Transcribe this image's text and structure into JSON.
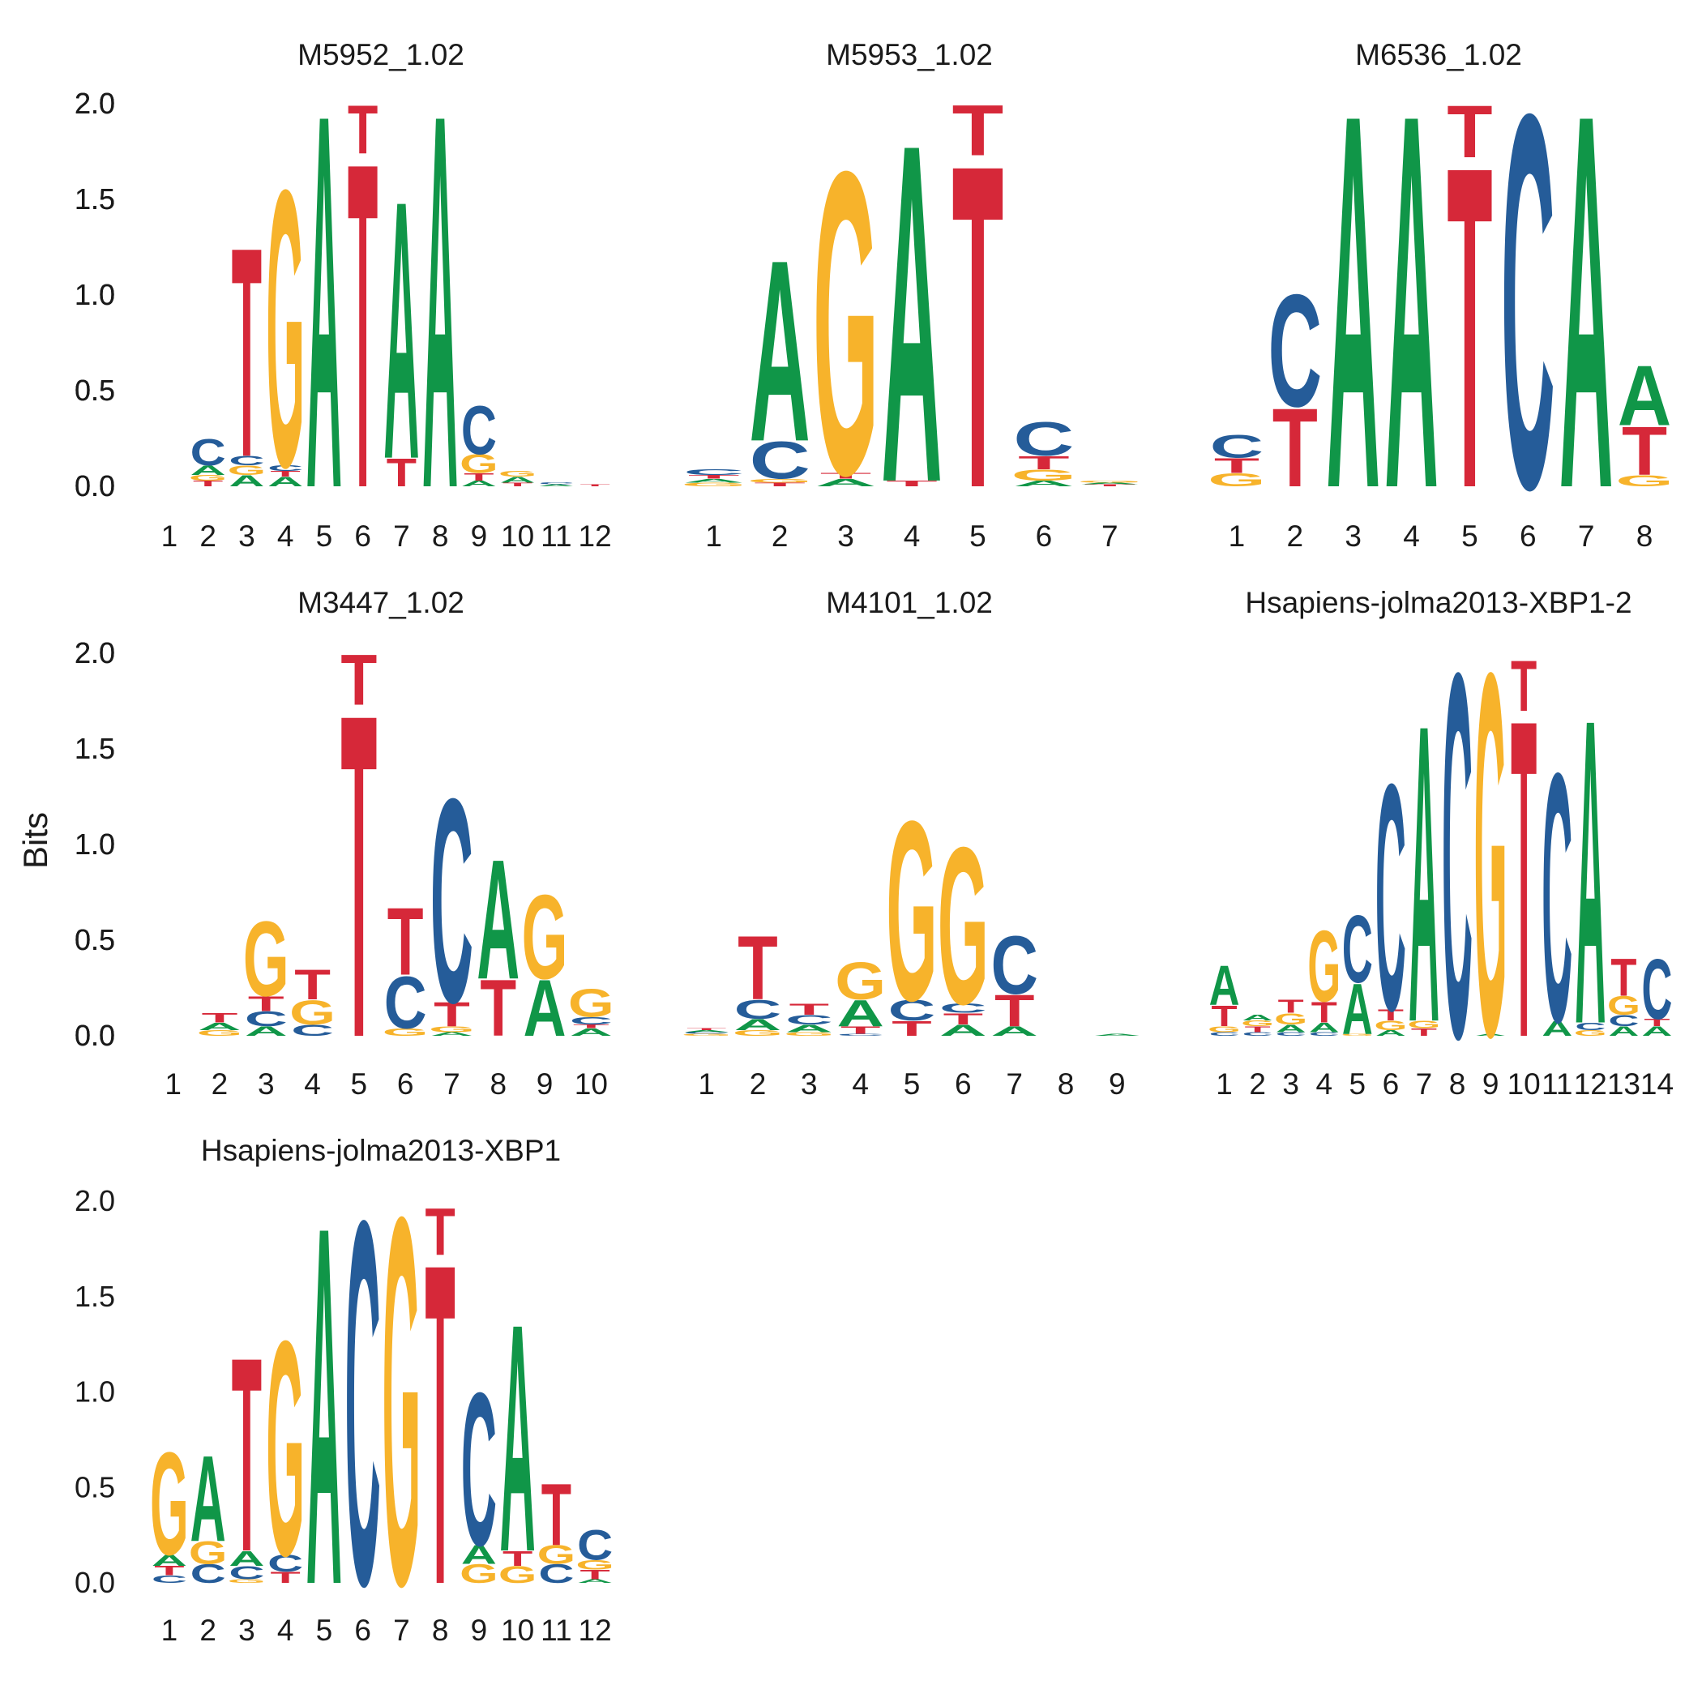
{
  "chart_data": {
    "type": "sequence-logo",
    "ylabel": "Bits",
    "ylim": [
      0,
      2
    ],
    "yticks": [
      "0.0",
      "0.5",
      "1.0",
      "1.5",
      "2.0"
    ],
    "colors": {
      "A": "#109648",
      "C": "#255C99",
      "G": "#F7B32B",
      "T": "#D62839"
    },
    "panels": [
      {
        "title": "M5952_1.02",
        "positions": [
          "1",
          "2",
          "3",
          "4",
          "5",
          "6",
          "7",
          "8",
          "9",
          "10",
          "11",
          "12"
        ],
        "stacks": [
          [],
          [
            [
              "T",
              0.03
            ],
            [
              "G",
              0.03
            ],
            [
              "A",
              0.05
            ],
            [
              "C",
              0.14
            ]
          ],
          [
            [
              "A",
              0.06
            ],
            [
              "G",
              0.05
            ],
            [
              "C",
              0.05
            ],
            [
              "T",
              1.12
            ]
          ],
          [
            [
              "A",
              0.05
            ],
            [
              "T",
              0.03
            ],
            [
              "C",
              0.03
            ],
            [
              "G",
              1.48
            ]
          ],
          [
            [
              "A",
              2.0
            ]
          ],
          [
            [
              "T",
              1.74
            ],
            [
              "T",
              0.26
            ]
          ],
          [
            [
              "T",
              0.15
            ],
            [
              "A",
              1.38
            ]
          ],
          [
            [
              "A",
              2.0
            ]
          ],
          [
            [
              "A",
              0.03
            ],
            [
              "T",
              0.04
            ],
            [
              "G",
              0.1
            ],
            [
              "C",
              0.26
            ]
          ],
          [
            [
              "T",
              0.02
            ],
            [
              "A",
              0.03
            ],
            [
              "G",
              0.03
            ]
          ],
          [
            [
              "A",
              0.01
            ],
            [
              "C",
              0.01
            ]
          ],
          [
            [
              "T",
              0.01
            ]
          ]
        ]
      },
      {
        "title": "M5953_1.02",
        "positions": [
          "1",
          "2",
          "3",
          "4",
          "5",
          "6",
          "7"
        ],
        "stacks": [
          [
            [
              "G",
              0.02
            ],
            [
              "A",
              0.02
            ],
            [
              "T",
              0.02
            ],
            [
              "C",
              0.03
            ]
          ],
          [
            [
              "T",
              0.02
            ],
            [
              "G",
              0.02
            ],
            [
              "C",
              0.2
            ],
            [
              "A",
              0.97
            ]
          ],
          [
            [
              "A",
              0.04
            ],
            [
              "T",
              0.03
            ],
            [
              "G",
              1.62
            ]
          ],
          [
            [
              "T",
              0.03
            ],
            [
              "A",
              1.81
            ]
          ],
          [
            [
              "T",
              1.73
            ],
            [
              "T",
              0.27
            ]
          ],
          [
            [
              "A",
              0.03
            ],
            [
              "G",
              0.06
            ],
            [
              "T",
              0.07
            ],
            [
              "C",
              0.18
            ]
          ],
          [
            [
              "T",
              0.01
            ],
            [
              "A",
              0.01
            ],
            [
              "G",
              0.01
            ]
          ]
        ]
      },
      {
        "title": "M6536_1.02",
        "positions": [
          "1",
          "2",
          "3",
          "4",
          "5",
          "6",
          "7",
          "8"
        ],
        "stacks": [
          [
            [
              "G",
              0.07
            ],
            [
              "T",
              0.08
            ],
            [
              "C",
              0.12
            ]
          ],
          [
            [
              "T",
              0.42
            ],
            [
              "C",
              0.6
            ]
          ],
          [
            [
              "A",
              2.0
            ]
          ],
          [
            [
              "A",
              2.0
            ]
          ],
          [
            [
              "T",
              1.72
            ],
            [
              "T",
              0.28
            ]
          ],
          [
            [
              "C",
              2.0
            ]
          ],
          [
            [
              "A",
              2.0
            ]
          ],
          [
            [
              "G",
              0.06
            ],
            [
              "T",
              0.26
            ],
            [
              "A",
              0.32
            ]
          ]
        ]
      },
      {
        "title": "M3447_1.02",
        "positions": [
          "1",
          "2",
          "3",
          "4",
          "5",
          "6",
          "7",
          "8",
          "9",
          "10"
        ],
        "stacks": [
          [],
          [
            [
              "G",
              0.03
            ],
            [
              "A",
              0.04
            ],
            [
              "T",
              0.05
            ]
          ],
          [
            [
              "A",
              0.05
            ],
            [
              "C",
              0.08
            ],
            [
              "T",
              0.08
            ],
            [
              "G",
              0.4
            ]
          ],
          [
            [
              "C",
              0.06
            ],
            [
              "G",
              0.13
            ],
            [
              "T",
              0.16
            ]
          ],
          [
            [
              "T",
              1.73
            ],
            [
              "T",
              0.27
            ]
          ],
          [
            [
              "G",
              0.04
            ],
            [
              "C",
              0.28
            ],
            [
              "T",
              0.36
            ]
          ],
          [
            [
              "A",
              0.02
            ],
            [
              "G",
              0.03
            ],
            [
              "T",
              0.13
            ],
            [
              "C",
              1.09
            ]
          ],
          [
            [
              "T",
              0.3
            ],
            [
              "A",
              0.64
            ]
          ],
          [
            [
              "A",
              0.3
            ],
            [
              "G",
              0.45
            ]
          ],
          [
            [
              "A",
              0.04
            ],
            [
              "T",
              0.02
            ],
            [
              "C",
              0.04
            ],
            [
              "G",
              0.15
            ]
          ]
        ]
      },
      {
        "title": "M4101_1.02",
        "positions": [
          "1",
          "2",
          "3",
          "4",
          "5",
          "6",
          "7",
          "8",
          "9"
        ],
        "stacks": [
          [
            [
              "G",
              0.01
            ],
            [
              "C",
              0.01
            ],
            [
              "A",
              0.01
            ],
            [
              "T",
              0.01
            ]
          ],
          [
            [
              "G",
              0.03
            ],
            [
              "A",
              0.06
            ],
            [
              "C",
              0.1
            ],
            [
              "T",
              0.34
            ]
          ],
          [
            [
              "G",
              0.02
            ],
            [
              "A",
              0.04
            ],
            [
              "C",
              0.05
            ],
            [
              "T",
              0.06
            ]
          ],
          [
            [
              "C",
              0.01
            ],
            [
              "T",
              0.04
            ],
            [
              "A",
              0.14
            ],
            [
              "G",
              0.2
            ]
          ],
          [
            [
              "T",
              0.08
            ],
            [
              "C",
              0.11
            ],
            [
              "G",
              0.96
            ]
          ],
          [
            [
              "A",
              0.06
            ],
            [
              "T",
              0.06
            ],
            [
              "C",
              0.05
            ],
            [
              "G",
              0.84
            ]
          ],
          [
            [
              "A",
              0.05
            ],
            [
              "T",
              0.17
            ],
            [
              "C",
              0.31
            ]
          ],
          [],
          [
            [
              "A",
              0.01
            ]
          ]
        ]
      },
      {
        "title": "Hsapiens-jolma2013-XBP1-2",
        "positions": [
          "1",
          "2",
          "3",
          "4",
          "5",
          "6",
          "7",
          "8",
          "9",
          "10",
          "11",
          "12",
          "13",
          "14"
        ],
        "stacks": [
          [
            [
              "C",
              0.02
            ],
            [
              "G",
              0.03
            ],
            [
              "T",
              0.11
            ],
            [
              "A",
              0.21
            ]
          ],
          [
            [
              "C",
              0.02
            ],
            [
              "T",
              0.03
            ],
            [
              "G",
              0.03
            ],
            [
              "A",
              0.03
            ]
          ],
          [
            [
              "C",
              0.02
            ],
            [
              "A",
              0.04
            ],
            [
              "G",
              0.06
            ],
            [
              "T",
              0.07
            ]
          ],
          [
            [
              "C",
              0.02
            ],
            [
              "A",
              0.05
            ],
            [
              "T",
              0.11
            ],
            [
              "G",
              0.38
            ]
          ],
          [
            [
              "G",
              0.01
            ],
            [
              "A",
              0.27
            ],
            [
              "C",
              0.36
            ]
          ],
          [
            [
              "A",
              0.03
            ],
            [
              "G",
              0.05
            ],
            [
              "T",
              0.06
            ],
            [
              "C",
              1.21
            ]
          ],
          [
            [
              "T",
              0.04
            ],
            [
              "G",
              0.04
            ],
            [
              "A",
              1.59
            ]
          ],
          [
            [
              "C",
              1.95
            ]
          ],
          [
            [
              "A",
              0.01
            ],
            [
              "G",
              1.94
            ]
          ],
          [
            [
              "T",
              1.7
            ],
            [
              "T",
              0.27
            ]
          ],
          [
            [
              "A",
              0.08
            ],
            [
              "C",
              1.33
            ]
          ],
          [
            [
              "G",
              0.03
            ],
            [
              "C",
              0.04
            ],
            [
              "A",
              1.63
            ]
          ],
          [
            [
              "A",
              0.05
            ],
            [
              "C",
              0.06
            ],
            [
              "G",
              0.1
            ],
            [
              "T",
              0.2
            ]
          ],
          [
            [
              "A",
              0.05
            ],
            [
              "T",
              0.04
            ],
            [
              "C",
              0.32
            ]
          ]
        ]
      },
      {
        "title": "Hsapiens-jolma2013-XBP1",
        "positions": [
          "1",
          "2",
          "3",
          "4",
          "5",
          "6",
          "7",
          "8",
          "9",
          "10",
          "11",
          "12"
        ],
        "stacks": [
          [
            [
              "C",
              0.04
            ],
            [
              "T",
              0.05
            ],
            [
              "A",
              0.06
            ],
            [
              "G",
              0.55
            ]
          ],
          [
            [
              "C",
              0.1
            ],
            [
              "G",
              0.12
            ],
            [
              "A",
              0.46
            ]
          ],
          [
            [
              "G",
              0.02
            ],
            [
              "C",
              0.07
            ],
            [
              "A",
              0.08
            ],
            [
              "T",
              1.04
            ]
          ],
          [
            [
              "T",
              0.06
            ],
            [
              "C",
              0.09
            ],
            [
              "G",
              1.15
            ]
          ],
          [
            [
              "A",
              1.92
            ]
          ],
          [
            [
              "C",
              1.95
            ]
          ],
          [
            [
              "G",
              1.97
            ]
          ],
          [
            [
              "T",
              1.72
            ],
            [
              "T",
              0.25
            ]
          ],
          [
            [
              "G",
              0.1
            ],
            [
              "A",
              0.1
            ],
            [
              "C",
              0.82
            ]
          ],
          [
            [
              "G",
              0.09
            ],
            [
              "T",
              0.08
            ],
            [
              "A",
              1.22
            ]
          ],
          [
            [
              "C",
              0.1
            ],
            [
              "G",
              0.1
            ],
            [
              "T",
              0.33
            ]
          ],
          [
            [
              "A",
              0.02
            ],
            [
              "T",
              0.05
            ],
            [
              "G",
              0.05
            ],
            [
              "C",
              0.16
            ]
          ]
        ]
      }
    ]
  }
}
